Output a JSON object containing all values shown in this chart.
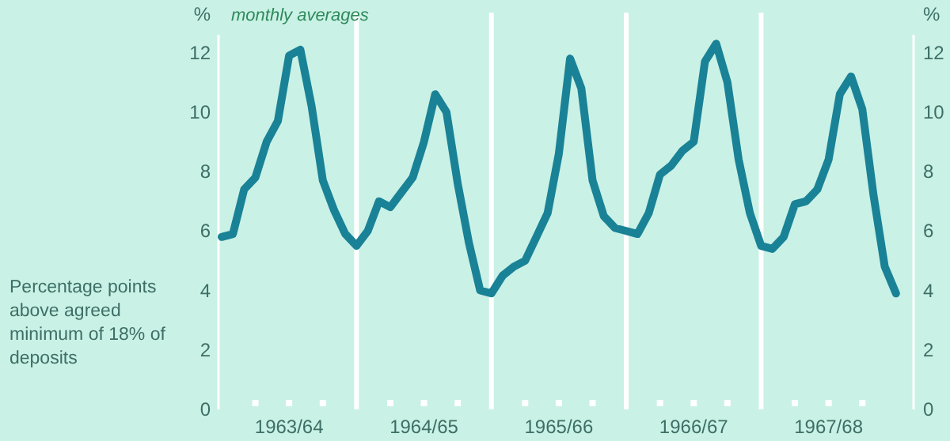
{
  "chart_data": {
    "type": "line",
    "ylabel": "%",
    "y2label": "%",
    "annotations": [
      "monthly averages",
      "Percentage points above agreed minimum of 18% of deposits"
    ],
    "categories": [
      null,
      null,
      null,
      null,
      null,
      null,
      "1963/64",
      null,
      null,
      null,
      null,
      null,
      null,
      null,
      null,
      null,
      null,
      null,
      "1964/65",
      null,
      null,
      null,
      null,
      null,
      null,
      null,
      null,
      null,
      null,
      null,
      "1965/66",
      null,
      null,
      null,
      null,
      null,
      null,
      null,
      null,
      null,
      null,
      null,
      "1966/67",
      null,
      null,
      null,
      null,
      null,
      null,
      null,
      null,
      null,
      null,
      null,
      "1967/68",
      null,
      null,
      null,
      null,
      null,
      null
    ],
    "series": [
      {
        "color": "#1a8296",
        "values": [
          5.8,
          5.9,
          7.4,
          7.8,
          9.0,
          9.7,
          11.9,
          12.1,
          10.2,
          7.7,
          6.7,
          5.9,
          5.5,
          6.0,
          7.0,
          6.8,
          7.3,
          7.8,
          9.0,
          10.6,
          10.0,
          7.6,
          5.6,
          4.0,
          3.9,
          4.5,
          4.8,
          5.0,
          5.8,
          6.6,
          8.6,
          11.8,
          10.8,
          7.7,
          6.5,
          6.1,
          6.0,
          5.9,
          6.6,
          7.9,
          8.2,
          8.7,
          9.0,
          11.7,
          12.3,
          11.0,
          8.4,
          6.6,
          5.5,
          5.4,
          5.8,
          6.9,
          7.0,
          7.4,
          8.4,
          10.6,
          11.2,
          10.1,
          7.2,
          4.8,
          3.9
        ]
      }
    ],
    "ylim": [
      0,
      12.6
    ],
    "yticks": [
      0,
      2,
      4,
      6,
      8,
      10,
      12
    ],
    "y2lim": [
      0,
      12.6
    ],
    "y2ticks": [
      0,
      2,
      4,
      6,
      8,
      10,
      12
    ],
    "marker": "none",
    "line_style": "solid"
  }
}
